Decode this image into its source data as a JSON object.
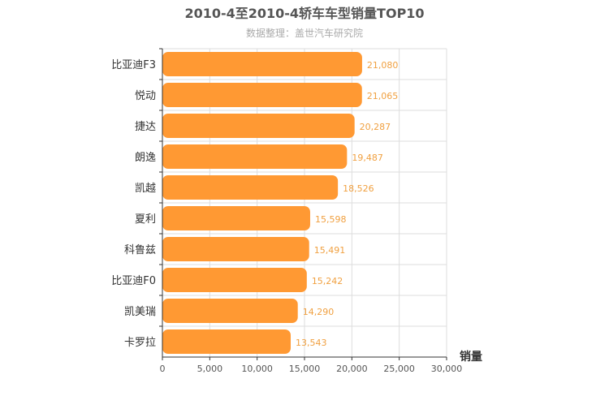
{
  "chart_data": {
    "type": "bar",
    "orientation": "horizontal",
    "title": "2010-4至2010-4轿车车型销量TOP10",
    "subtitle": "数据整理：盖世汽车研究院",
    "xlabel": "销量",
    "ylabel": "",
    "categories": [
      "比亚迪F3",
      "悦动",
      "捷达",
      "朗逸",
      "凯越",
      "夏利",
      "科鲁兹",
      "比亚迪F0",
      "凯美瑞",
      "卡罗拉"
    ],
    "values": [
      21080,
      21065,
      20287,
      19487,
      18526,
      15598,
      15491,
      15242,
      14290,
      13543
    ],
    "value_labels": [
      "21,080",
      "21,065",
      "20,287",
      "19,487",
      "18,526",
      "15,598",
      "15,491",
      "15,242",
      "14,290",
      "13,543"
    ],
    "xlim": [
      0,
      30000
    ],
    "xticks": [
      0,
      5000,
      10000,
      15000,
      20000,
      25000,
      30000
    ],
    "xtick_labels": [
      "0",
      "5,000",
      "10,000",
      "15,000",
      "20,000",
      "25,000",
      "30,000"
    ],
    "grid": true,
    "legend": "none",
    "colors": {
      "bar": "#ff9933",
      "value_label": "#f0a040"
    }
  }
}
